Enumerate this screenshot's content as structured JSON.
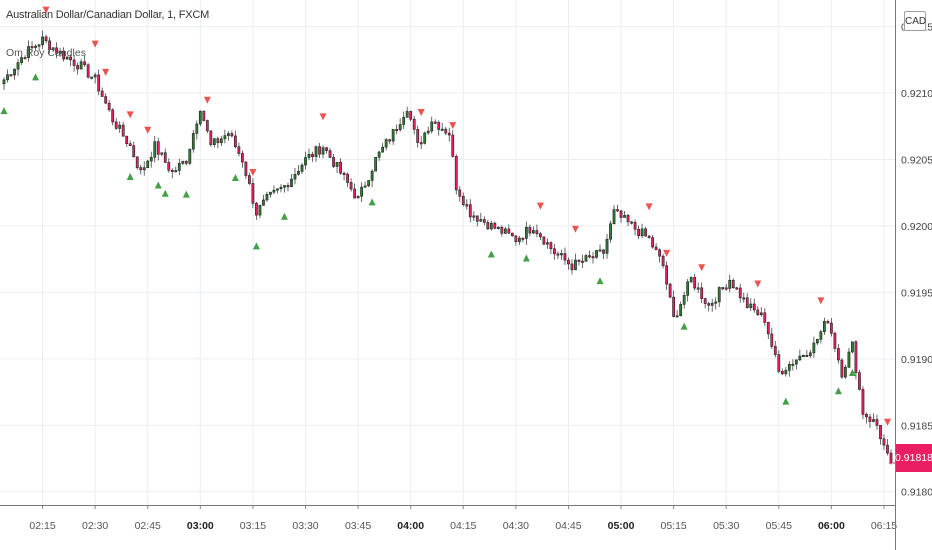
{
  "header": {
    "symbol_title": "Australian Dollar/Canadian Dollar, 1, FXCM",
    "indicator_name": "Om Roy Candles",
    "currency": "CAD"
  },
  "last_price_label": "0.91818",
  "colors": {
    "up_candle": "#2e7d32",
    "down_candle": "#e91e63",
    "wick": "#444444",
    "buy_signal": "#43a047",
    "sell_signal": "#ef5350",
    "grid": "#e8eef2",
    "price_tag": "#e91e63"
  },
  "chart_data": {
    "type": "candlestick",
    "y_axis": {
      "side": "right",
      "ylim": [
        0.9179,
        0.9217
      ],
      "tick_labels": [
        "0.92150",
        "0.92100",
        "0.92050",
        "0.92000",
        "0.91950",
        "0.91900",
        "0.91850",
        "0.91800"
      ],
      "tick_values": [
        0.9215,
        0.921,
        0.9205,
        0.92,
        0.9195,
        0.919,
        0.9185,
        0.918
      ]
    },
    "x_axis": {
      "tick_labels": [
        "02:15",
        "02:30",
        "02:45",
        "03:00",
        "03:15",
        "03:30",
        "03:45",
        "04:00",
        "04:15",
        "04:30",
        "04:45",
        "05:00",
        "05:15",
        "05:30",
        "05:45",
        "06:00",
        "06:15"
      ],
      "bold_labels": [
        "03:00",
        "04:00",
        "05:00",
        "06:00"
      ],
      "start_time": "02:04",
      "end_time": "06:17"
    },
    "grid": true,
    "close_path": [
      [
        "02:04",
        0.9211
      ],
      [
        "02:10",
        0.9213
      ],
      [
        "02:15",
        0.9214
      ],
      [
        "02:20",
        0.9213
      ],
      [
        "02:26",
        0.9212
      ],
      [
        "02:30",
        0.9211
      ],
      [
        "02:35",
        0.9208
      ],
      [
        "02:40",
        0.9206
      ],
      [
        "02:43",
        0.9204
      ],
      [
        "02:47",
        0.9206
      ],
      [
        "02:52",
        0.9204
      ],
      [
        "02:56",
        0.9205
      ],
      [
        "03:00",
        0.9209
      ],
      [
        "03:03",
        0.9206
      ],
      [
        "03:08",
        0.9207
      ],
      [
        "03:12",
        0.9205
      ],
      [
        "03:16",
        0.9201
      ],
      [
        "03:19",
        0.9202
      ],
      [
        "03:24",
        0.9203
      ],
      [
        "03:30",
        0.9205
      ],
      [
        "03:35",
        0.9206
      ],
      [
        "03:40",
        0.9204
      ],
      [
        "03:45",
        0.9202
      ],
      [
        "03:50",
        0.9205
      ],
      [
        "03:55",
        0.9207
      ],
      [
        "03:59",
        0.9209
      ],
      [
        "04:02",
        0.9206
      ],
      [
        "04:06",
        0.9208
      ],
      [
        "04:11",
        0.9207
      ],
      [
        "04:13",
        0.9203
      ],
      [
        "04:17",
        0.9201
      ],
      [
        "04:23",
        0.92
      ],
      [
        "04:30",
        0.9199
      ],
      [
        "04:35",
        0.92
      ],
      [
        "04:41",
        0.9198
      ],
      [
        "04:46",
        0.9197
      ],
      [
        "04:55",
        0.9198
      ],
      [
        "04:58",
        0.9201
      ],
      [
        "05:03",
        0.92
      ],
      [
        "05:08",
        0.9199
      ],
      [
        "05:12",
        0.9197
      ],
      [
        "05:15",
        0.9193
      ],
      [
        "05:20",
        0.9196
      ],
      [
        "05:25",
        0.9194
      ],
      [
        "05:31",
        0.9196
      ],
      [
        "05:36",
        0.9194
      ],
      [
        "05:41",
        0.9193
      ],
      [
        "05:45",
        0.9189
      ],
      [
        "05:50",
        0.919
      ],
      [
        "05:55",
        0.9191
      ],
      [
        "05:59",
        0.9193
      ],
      [
        "06:03",
        0.9189
      ],
      [
        "06:06",
        0.9191
      ],
      [
        "06:09",
        0.9186
      ],
      [
        "06:13",
        0.9185
      ],
      [
        "06:17",
        0.91818
      ]
    ],
    "signals": {
      "buy": [
        "02:04",
        "02:13",
        "02:40",
        "02:48",
        "02:50",
        "02:56",
        "03:10",
        "03:16",
        "03:24",
        "03:49",
        "04:23",
        "04:33",
        "04:54",
        "05:18",
        "05:47",
        "06:02",
        "06:06"
      ],
      "sell": [
        "02:16",
        "02:30",
        "02:33",
        "02:40",
        "02:45",
        "03:02",
        "03:15",
        "03:35",
        "04:03",
        "04:12",
        "04:37",
        "04:47",
        "05:08",
        "05:13",
        "05:23",
        "05:39",
        "05:57",
        "06:16"
      ]
    }
  }
}
